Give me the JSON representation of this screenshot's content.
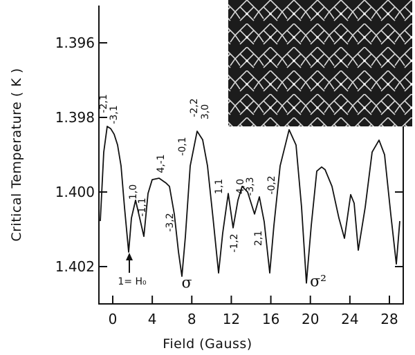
{
  "chart_data": {
    "type": "line",
    "x_label": "Field (Gauss)",
    "y_label": "Critical Temperature ( K )",
    "xlim": [
      -1.4,
      29.4
    ],
    "ylim": [
      1.395,
      1.403
    ],
    "y_inverted": true,
    "xticks": [
      0,
      4,
      8,
      12,
      16,
      20,
      24,
      28
    ],
    "yticks": [
      1.396,
      1.398,
      {
        "value": 1.4,
        "label": "1.400"
      },
      1.402
    ],
    "color": "#111111",
    "x": [
      -1.26,
      -0.91,
      -0.56,
      -0.21,
      0.14,
      0.49,
      0.84,
      1.19,
      1.61,
      1.89,
      2.31,
      2.73,
      3.15,
      3.57,
      3.99,
      4.69,
      5.39,
      5.74,
      6.23,
      6.65,
      7.0,
      7.35,
      7.84,
      8.54,
      9.1,
      9.59,
      10.15,
      10.71,
      11.13,
      11.69,
      12.18,
      12.67,
      13.09,
      13.65,
      14.35,
      14.84,
      15.33,
      15.89,
      16.31,
      16.94,
      17.85,
      18.55,
      19.11,
      19.6,
      20.09,
      20.65,
      21.14,
      21.49,
      22.19,
      22.89,
      23.45,
      24.08,
      24.43,
      24.85,
      25.55,
      26.25,
      26.95,
      27.51,
      28.14,
      28.7,
      29.05
    ],
    "values": [
      1.40078,
      1.39893,
      1.39824,
      1.3983,
      1.39845,
      1.39874,
      1.3993,
      1.40041,
      1.40161,
      1.4007,
      1.40022,
      1.4007,
      1.40119,
      1.40004,
      1.39967,
      1.39963,
      1.39976,
      1.39985,
      1.40059,
      1.4016,
      1.40226,
      1.4012,
      1.3993,
      1.39837,
      1.3986,
      1.3993,
      1.4007,
      1.40217,
      1.4011,
      1.40004,
      1.40096,
      1.40022,
      1.39985,
      1.4,
      1.40059,
      1.40013,
      1.4008,
      1.40217,
      1.4009,
      1.3993,
      1.39833,
      1.39874,
      1.40041,
      1.40244,
      1.4009,
      1.39944,
      1.39933,
      1.3994,
      1.39985,
      1.4007,
      1.40124,
      1.40007,
      1.4003,
      1.40156,
      1.40041,
      1.39893,
      1.39861,
      1.399,
      1.4006,
      1.40193,
      1.40078
    ],
    "annotations": [
      "-2,1",
      "-3,1",
      "1,0",
      "-1,1",
      "4,-1",
      "-3,2",
      "-0,1",
      "-2,2",
      "3,0",
      "1,1",
      "-1,2",
      "4,0",
      "-3,3",
      "2,1",
      "-0,2",
      "1= H₀",
      "σ",
      "σ²"
    ]
  }
}
